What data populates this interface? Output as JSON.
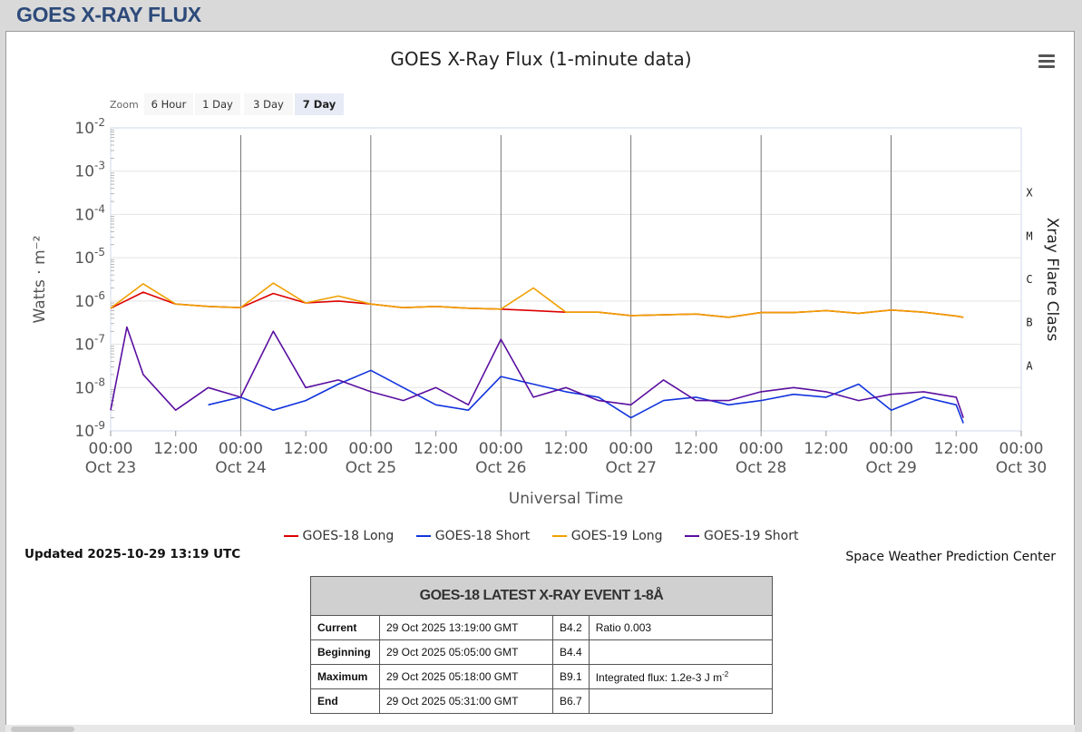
{
  "page": {
    "header": "GOES X-RAY FLUX"
  },
  "toolbar": {
    "zoom_label": "Zoom",
    "buttons": [
      {
        "label": "6 Hour",
        "active": false
      },
      {
        "label": "1 Day",
        "active": false
      },
      {
        "label": "3 Day",
        "active": false
      },
      {
        "label": "7 Day",
        "active": true
      }
    ],
    "menu_icon": "hamburger-icon"
  },
  "chart_data": {
    "type": "line",
    "title": "GOES X-Ray Flux (1-minute data)",
    "xlabel": "Universal Time",
    "ylabel": "Watts · m⁻²",
    "y2label": "Xray Flare Class",
    "yscale": "log",
    "ylim": [
      1e-09,
      0.01
    ],
    "xlim": [
      "2025-10-23 00:00",
      "2025-10-30 00:00"
    ],
    "y_ticks": [
      {
        "base": "10",
        "exp": "-2"
      },
      {
        "base": "10",
        "exp": "-3"
      },
      {
        "base": "10",
        "exp": "-4"
      },
      {
        "base": "10",
        "exp": "-5"
      },
      {
        "base": "10",
        "exp": "-6"
      },
      {
        "base": "10",
        "exp": "-7"
      },
      {
        "base": "10",
        "exp": "-8"
      },
      {
        "base": "10",
        "exp": "-9"
      }
    ],
    "x_ticks": [
      {
        "time": "00:00",
        "date": "Oct 23"
      },
      {
        "time": "12:00",
        "date": ""
      },
      {
        "time": "00:00",
        "date": "Oct 24"
      },
      {
        "time": "12:00",
        "date": ""
      },
      {
        "time": "00:00",
        "date": "Oct 25"
      },
      {
        "time": "12:00",
        "date": ""
      },
      {
        "time": "00:00",
        "date": "Oct 26"
      },
      {
        "time": "12:00",
        "date": ""
      },
      {
        "time": "00:00",
        "date": "Oct 27"
      },
      {
        "time": "12:00",
        "date": ""
      },
      {
        "time": "00:00",
        "date": "Oct 28"
      },
      {
        "time": "12:00",
        "date": ""
      },
      {
        "time": "00:00",
        "date": "Oct 29"
      },
      {
        "time": "12:00",
        "date": ""
      },
      {
        "time": "00:00",
        "date": "Oct 30"
      }
    ],
    "flare_classes": [
      "X",
      "M",
      "C",
      "B",
      "A"
    ],
    "grid": true,
    "legend_position": "bottom",
    "series": [
      {
        "name": "GOES-18 Long",
        "color": "#dd0000",
        "x": [
          "2025-10-23 00:00",
          "2025-10-23 06:00",
          "2025-10-23 12:00",
          "2025-10-23 18:00",
          "2025-10-24 00:00",
          "2025-10-24 06:00",
          "2025-10-24 12:00",
          "2025-10-24 18:00",
          "2025-10-25 00:00",
          "2025-10-25 06:00",
          "2025-10-25 12:00",
          "2025-10-25 18:00",
          "2025-10-26 00:00",
          "2025-10-26 06:00",
          "2025-10-26 12:00",
          "2025-10-26 18:00",
          "2025-10-27 00:00",
          "2025-10-27 06:00",
          "2025-10-27 12:00",
          "2025-10-27 18:00",
          "2025-10-28 00:00",
          "2025-10-28 06:00",
          "2025-10-28 12:00",
          "2025-10-28 18:00",
          "2025-10-29 00:00",
          "2025-10-29 06:00",
          "2025-10-29 12:00",
          "2025-10-29 13:19"
        ],
        "y": [
          6.8e-07,
          1.6e-06,
          8.5e-07,
          7.5e-07,
          7e-07,
          1.5e-06,
          9e-07,
          1e-06,
          8.5e-07,
          7e-07,
          7.5e-07,
          6.8e-07,
          6.5e-07,
          6e-07,
          5.5e-07,
          5.5e-07,
          4.6e-07,
          4.8e-07,
          5e-07,
          4.2e-07,
          5.4e-07,
          5.4e-07,
          6e-07,
          5.2e-07,
          6.2e-07,
          5.5e-07,
          4.5e-07,
          4.2e-07
        ]
      },
      {
        "name": "GOES-18 Short",
        "color": "#1133dd",
        "x": [
          "2025-10-23 18:00",
          "2025-10-24 00:00",
          "2025-10-24 06:00",
          "2025-10-24 12:00",
          "2025-10-24 18:00",
          "2025-10-25 00:00",
          "2025-10-25 06:00",
          "2025-10-25 12:00",
          "2025-10-25 18:00",
          "2025-10-26 00:00",
          "2025-10-26 06:00",
          "2025-10-26 12:00",
          "2025-10-26 18:00",
          "2025-10-27 00:00",
          "2025-10-27 06:00",
          "2025-10-27 12:00",
          "2025-10-27 18:00",
          "2025-10-28 00:00",
          "2025-10-28 06:00",
          "2025-10-28 12:00",
          "2025-10-28 18:00",
          "2025-10-29 00:00",
          "2025-10-29 06:00",
          "2025-10-29 12:00",
          "2025-10-29 13:19"
        ],
        "y": [
          4e-09,
          6e-09,
          3e-09,
          5e-09,
          1.2e-08,
          2.5e-08,
          1e-08,
          4e-09,
          3e-09,
          1.8e-08,
          1.2e-08,
          8e-09,
          6e-09,
          2e-09,
          5e-09,
          6e-09,
          4e-09,
          5e-09,
          7e-09,
          6e-09,
          1.2e-08,
          3e-09,
          6e-09,
          4e-09,
          1.5e-09
        ]
      },
      {
        "name": "GOES-19 Long",
        "color": "#f0a000",
        "x": [
          "2025-10-23 00:00",
          "2025-10-23 06:00",
          "2025-10-23 12:00",
          "2025-10-23 18:00",
          "2025-10-24 00:00",
          "2025-10-24 06:00",
          "2025-10-24 12:00",
          "2025-10-24 18:00",
          "2025-10-25 00:00",
          "2025-10-25 06:00",
          "2025-10-25 12:00",
          "2025-10-25 18:00",
          "2025-10-26 00:00",
          "2025-10-26 06:00",
          "2025-10-26 12:00",
          "2025-10-26 18:00",
          "2025-10-27 00:00",
          "2025-10-27 06:00",
          "2025-10-27 12:00",
          "2025-10-27 18:00",
          "2025-10-28 00:00",
          "2025-10-28 06:00",
          "2025-10-28 12:00",
          "2025-10-28 18:00",
          "2025-10-29 00:00",
          "2025-10-29 06:00",
          "2025-10-29 12:00",
          "2025-10-29 13:19"
        ],
        "y": [
          6.8e-07,
          2.5e-06,
          8.5e-07,
          7.5e-07,
          7e-07,
          2.6e-06,
          9e-07,
          1.3e-06,
          8.5e-07,
          7e-07,
          7.5e-07,
          6.8e-07,
          6.5e-07,
          2e-06,
          5.5e-07,
          5.5e-07,
          4.6e-07,
          4.8e-07,
          5e-07,
          4.2e-07,
          5.4e-07,
          5.4e-07,
          6e-07,
          5.2e-07,
          6.2e-07,
          5.5e-07,
          4.5e-07,
          4.2e-07
        ]
      },
      {
        "name": "GOES-19 Short",
        "color": "#5a0fa0",
        "x": [
          "2025-10-23 00:00",
          "2025-10-23 03:00",
          "2025-10-23 06:00",
          "2025-10-23 12:00",
          "2025-10-23 18:00",
          "2025-10-24 00:00",
          "2025-10-24 06:00",
          "2025-10-24 12:00",
          "2025-10-24 18:00",
          "2025-10-25 00:00",
          "2025-10-25 06:00",
          "2025-10-25 12:00",
          "2025-10-25 18:00",
          "2025-10-26 00:00",
          "2025-10-26 06:00",
          "2025-10-26 12:00",
          "2025-10-26 18:00",
          "2025-10-27 00:00",
          "2025-10-27 06:00",
          "2025-10-27 12:00",
          "2025-10-27 18:00",
          "2025-10-28 00:00",
          "2025-10-28 06:00",
          "2025-10-28 12:00",
          "2025-10-28 18:00",
          "2025-10-29 00:00",
          "2025-10-29 06:00",
          "2025-10-29 12:00",
          "2025-10-29 13:19"
        ],
        "y": [
          3e-09,
          2.5e-07,
          2e-08,
          3e-09,
          1e-08,
          6e-09,
          2e-07,
          1e-08,
          1.5e-08,
          8e-09,
          5e-09,
          1e-08,
          4e-09,
          1.3e-07,
          6e-09,
          1e-08,
          5e-09,
          4e-09,
          1.5e-08,
          5e-09,
          5e-09,
          8e-09,
          1e-08,
          8e-09,
          5e-09,
          7e-09,
          8e-09,
          6e-09,
          2e-09
        ]
      }
    ]
  },
  "footer": {
    "updated": "Updated 2025-10-29 13:19 UTC",
    "source": "Space Weather Prediction Center"
  },
  "event_table": {
    "title": "GOES-18 LATEST X-RAY EVENT 1-8Å",
    "rows": [
      {
        "label": "Current",
        "time": "29 Oct 2025 13:19:00 GMT",
        "class": "B4.2",
        "note": "Ratio 0.003",
        "note_sup": ""
      },
      {
        "label": "Beginning",
        "time": "29 Oct 2025 05:05:00 GMT",
        "class": "B4.4",
        "note": "",
        "note_sup": ""
      },
      {
        "label": "Maximum",
        "time": "29 Oct 2025 05:18:00 GMT",
        "class": "B9.1",
        "note": "Integrated flux: 1.2e-3 J m",
        "note_sup": "-2"
      },
      {
        "label": "End",
        "time": "29 Oct 2025 05:31:00 GMT",
        "class": "B6.7",
        "note": "",
        "note_sup": ""
      }
    ]
  }
}
